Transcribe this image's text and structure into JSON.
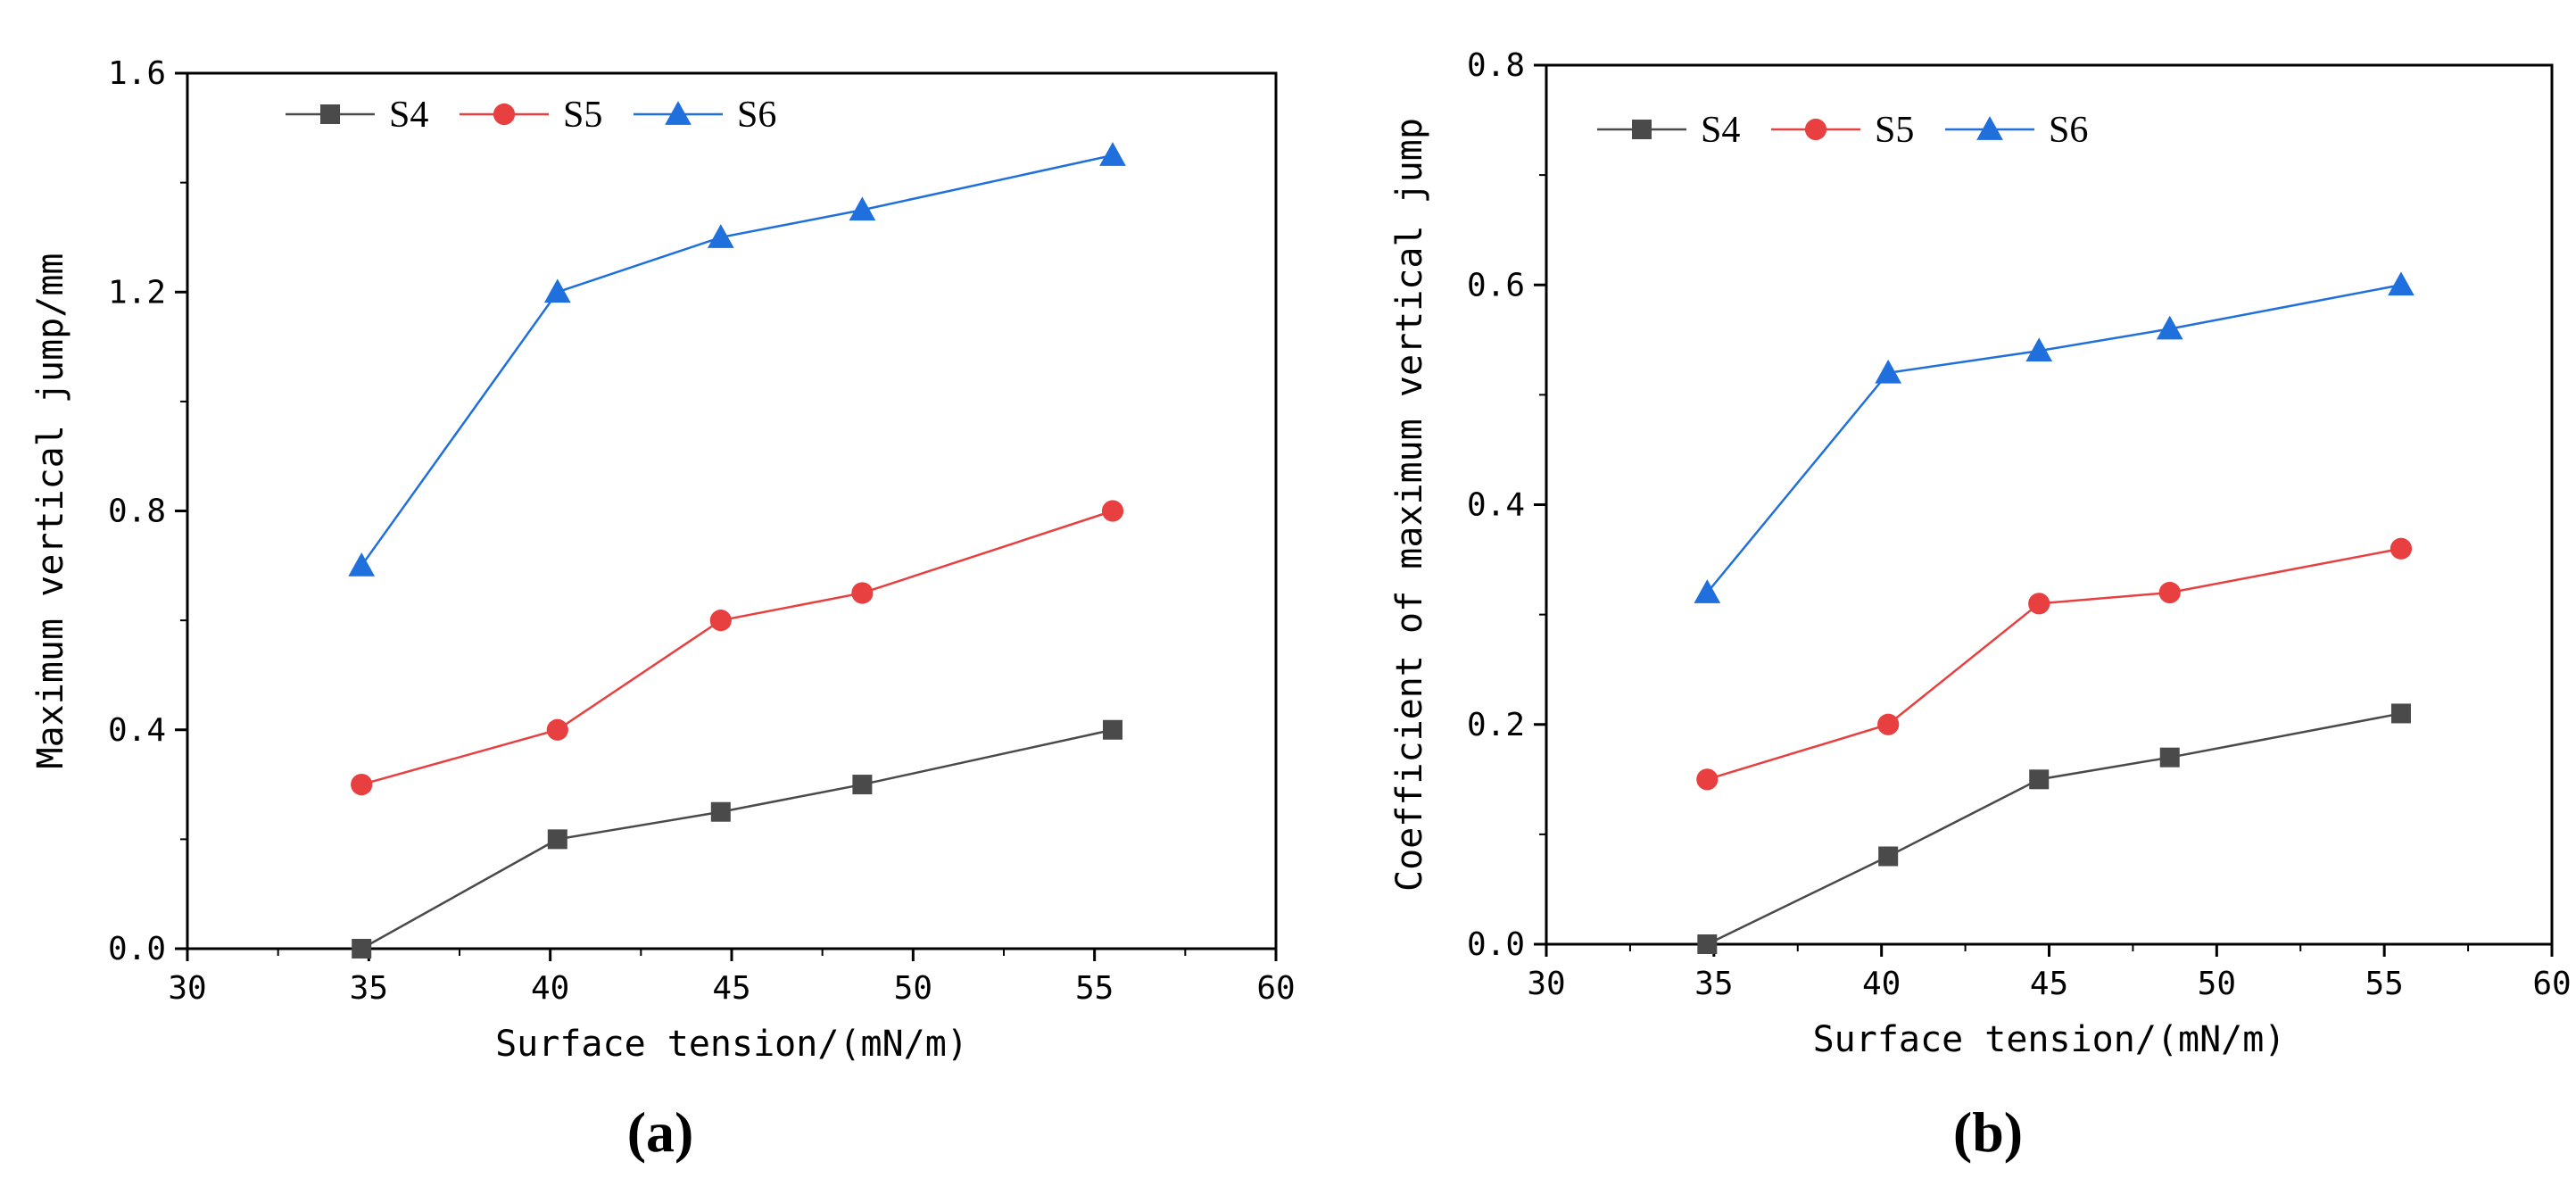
{
  "colors": {
    "S4": "#4a4a4a",
    "S5": "#e84040",
    "S6": "#1f6fdc",
    "axis": "#000000"
  },
  "chart_data": [
    {
      "type": "line",
      "panel_label": "(a)",
      "xlabel": "Surface tension/(mN/m)",
      "ylabel": "Maximum vertical jump/mm",
      "xlim": [
        30,
        60
      ],
      "ylim": [
        0,
        1.6
      ],
      "xticks": [
        30,
        35,
        40,
        45,
        50,
        55,
        60
      ],
      "yticks": [
        0.0,
        0.4,
        0.8,
        1.2,
        1.6
      ],
      "xtick_labels": [
        "30",
        "35",
        "40",
        "45",
        "50",
        "55",
        "60"
      ],
      "ytick_labels": [
        "0.0",
        "0.4",
        "0.8",
        "1.2",
        "1.6"
      ],
      "x": [
        34.8,
        40.2,
        44.7,
        48.6,
        55.5
      ],
      "series": [
        {
          "name": "S4",
          "marker": "square",
          "values": [
            0.0,
            0.2,
            0.25,
            0.3,
            0.4
          ]
        },
        {
          "name": "S5",
          "marker": "circle",
          "values": [
            0.3,
            0.4,
            0.6,
            0.65,
            0.8
          ]
        },
        {
          "name": "S6",
          "marker": "triangle",
          "values": [
            0.7,
            1.2,
            1.3,
            1.35,
            1.45
          ]
        }
      ],
      "legend": "top-left"
    },
    {
      "type": "line",
      "panel_label": "(b)",
      "xlabel": "Surface tension/(mN/m)",
      "ylabel": "Coefficient of maximum vertical jump",
      "xlim": [
        30,
        60
      ],
      "ylim": [
        0,
        0.8
      ],
      "xticks": [
        30,
        35,
        40,
        45,
        50,
        55,
        60
      ],
      "yticks": [
        0.0,
        0.2,
        0.4,
        0.6,
        0.8
      ],
      "xtick_labels": [
        "30",
        "35",
        "40",
        "45",
        "50",
        "55",
        "60"
      ],
      "ytick_labels": [
        "0.0",
        "0.2",
        "0.4",
        "0.6",
        "0.8"
      ],
      "x": [
        34.8,
        40.2,
        44.7,
        48.6,
        55.5
      ],
      "series": [
        {
          "name": "S4",
          "marker": "square",
          "values": [
            0.0,
            0.08,
            0.15,
            0.17,
            0.21
          ]
        },
        {
          "name": "S5",
          "marker": "circle",
          "values": [
            0.15,
            0.2,
            0.31,
            0.32,
            0.36
          ]
        },
        {
          "name": "S6",
          "marker": "triangle",
          "values": [
            0.32,
            0.52,
            0.54,
            0.56,
            0.6
          ]
        }
      ],
      "legend": "top-left"
    }
  ]
}
